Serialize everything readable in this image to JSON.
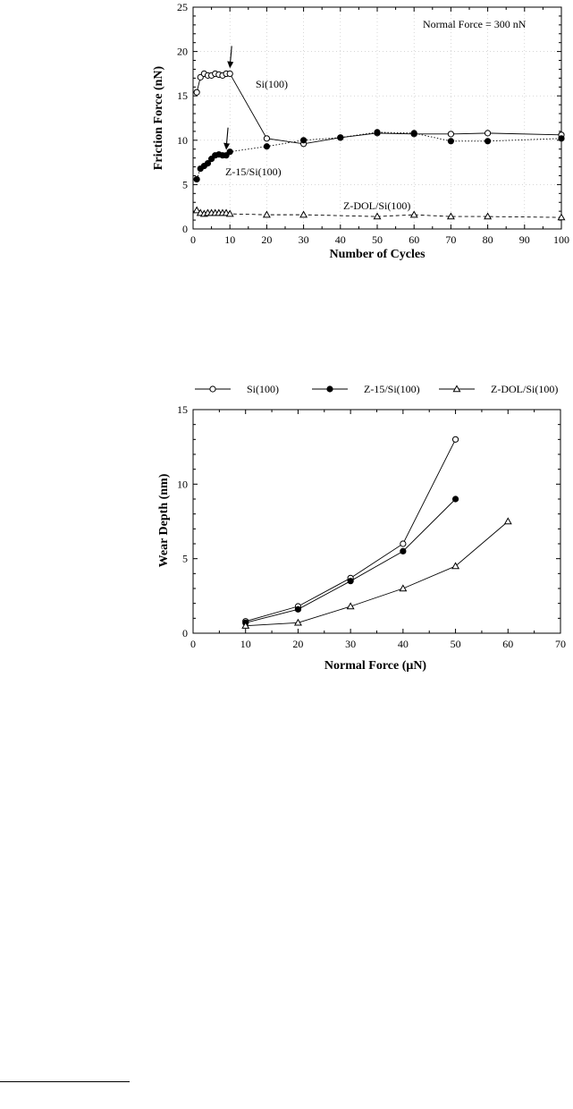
{
  "chart_data": [
    {
      "type": "line",
      "title": "",
      "xlabel": "Number of Cycles",
      "ylabel": "Friction Force (nN)",
      "xlim": [
        0,
        100
      ],
      "ylim": [
        0,
        25
      ],
      "x_ticks": [
        0,
        10,
        20,
        30,
        40,
        50,
        60,
        70,
        80,
        90,
        100
      ],
      "y_ticks": [
        0,
        5,
        10,
        15,
        20,
        25
      ],
      "legend": "none",
      "annotations": [
        {
          "id": "normal_force",
          "text": "Normal Force = 300 nN"
        },
        {
          "id": "si",
          "text": "Si(100)"
        },
        {
          "id": "z15",
          "text": "Z-15/Si(100)"
        },
        {
          "id": "zdol",
          "text": "Z-DOL/Si(100)"
        }
      ],
      "arrows": [
        {
          "x": 10,
          "y": 17.6
        },
        {
          "x": 9,
          "y": 8.4
        }
      ],
      "series": [
        {
          "marker": "open-circle",
          "line": "solid",
          "x": [
            1,
            2,
            3,
            4,
            5,
            6,
            7,
            8,
            9,
            10,
            20,
            30,
            40,
            50,
            60,
            70,
            80,
            100
          ],
          "y": [
            15.4,
            17.1,
            17.5,
            17.3,
            17.3,
            17.5,
            17.4,
            17.3,
            17.5,
            17.5,
            10.2,
            9.6,
            10.3,
            10.8,
            10.7,
            10.7,
            10.8,
            10.6
          ]
        },
        {
          "marker": "filled-circle",
          "line": "dotted",
          "x": [
            1,
            2,
            3,
            4,
            5,
            6,
            7,
            8,
            9,
            10,
            20,
            30,
            40,
            50,
            60,
            70,
            80,
            100
          ],
          "y": [
            5.6,
            6.8,
            7.1,
            7.4,
            7.9,
            8.3,
            8.4,
            8.3,
            8.3,
            8.7,
            9.3,
            10.0,
            10.3,
            10.9,
            10.8,
            9.9,
            9.9,
            10.2
          ]
        },
        {
          "marker": "open-triangle",
          "line": "dashed",
          "x": [
            1,
            2,
            3,
            4,
            5,
            6,
            7,
            8,
            9,
            10,
            20,
            30,
            50,
            60,
            70,
            80,
            100
          ],
          "y": [
            2.1,
            1.8,
            1.7,
            1.8,
            1.8,
            1.8,
            1.8,
            1.8,
            1.8,
            1.7,
            1.6,
            1.6,
            1.4,
            1.6,
            1.4,
            1.4,
            1.3
          ]
        }
      ]
    },
    {
      "type": "line",
      "title": "",
      "xlabel": "Normal Force (μN)",
      "ylabel": "Wear Depth (nm)",
      "xlim": [
        0,
        70
      ],
      "ylim": [
        0,
        15
      ],
      "x_ticks": [
        0,
        10,
        20,
        30,
        40,
        50,
        60,
        70
      ],
      "y_ticks": [
        0,
        5,
        10,
        15
      ],
      "legend": "top",
      "series": [
        {
          "name": "Si(100)",
          "marker": "open-circle",
          "line": "solid",
          "x": [
            10,
            20,
            30,
            40,
            50
          ],
          "y": [
            0.8,
            1.8,
            3.7,
            6.0,
            13.0
          ]
        },
        {
          "name": "Z-15/Si(100)",
          "marker": "filled-circle",
          "line": "solid",
          "x": [
            10,
            20,
            30,
            40,
            50
          ],
          "y": [
            0.7,
            1.6,
            3.5,
            5.5,
            9.0
          ]
        },
        {
          "name": "Z-DOL/Si(100)",
          "marker": "open-triangle",
          "line": "solid",
          "x": [
            10,
            20,
            30,
            40,
            50,
            60
          ],
          "y": [
            0.5,
            0.7,
            1.8,
            3.0,
            4.5,
            7.5
          ]
        }
      ]
    }
  ]
}
